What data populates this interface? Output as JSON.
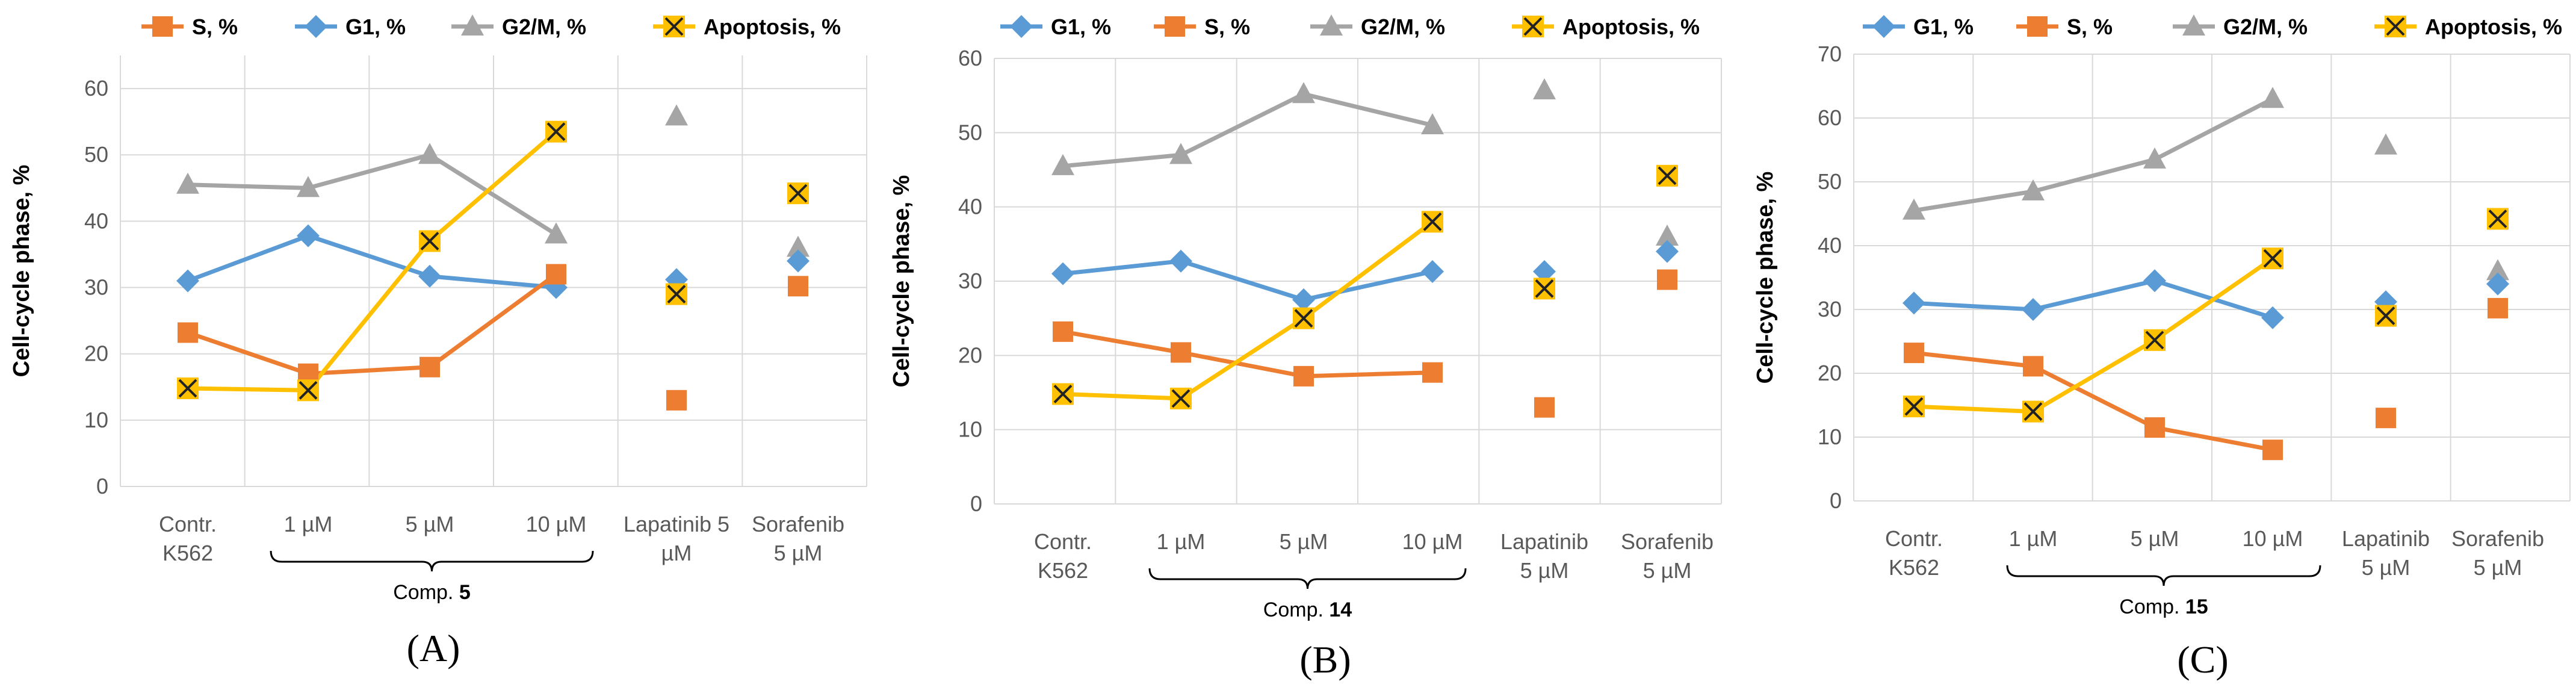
{
  "colors": {
    "G1": "#5B9BD5",
    "S": "#ED7D31",
    "G2M": "#A5A5A5",
    "Apoptosis": "#FFC000",
    "grid": "#D9D9D9"
  },
  "chart_data": [
    {
      "type": "line",
      "panel_label": "(A)",
      "ylabel": "Cell-cycle phase, %",
      "ylim": [
        0,
        65
      ],
      "yticks": [
        0,
        10,
        20,
        30,
        40,
        50,
        60
      ],
      "categories": [
        [
          "Contr.",
          "K562"
        ],
        [
          "1 µM"
        ],
        [
          "5 µM"
        ],
        [
          "10 µM"
        ],
        [
          "Lapatinib 5",
          "µM"
        ],
        [
          "Sorafenib",
          "5 µM"
        ]
      ],
      "group_label": {
        "prefix": "Comp. ",
        "number": "5"
      },
      "legend": [
        "S, %",
        "G1, %",
        "G2/M, %",
        "Apoptosis, %"
      ],
      "series": [
        {
          "key": "S",
          "name": "S, %",
          "values": [
            23.2,
            17.0,
            18.0,
            32.0,
            13.0,
            30.2
          ]
        },
        {
          "key": "G1",
          "name": "G1, %",
          "values": [
            31.0,
            37.8,
            31.7,
            30.0,
            31.2,
            34.0
          ]
        },
        {
          "key": "G2M",
          "name": "G2/M, %",
          "values": [
            45.5,
            45.0,
            50.0,
            38.0,
            55.8,
            36.0
          ]
        },
        {
          "key": "Apoptosis",
          "name": "Apoptosis, %",
          "values": [
            14.8,
            14.5,
            37.0,
            53.5,
            29.0,
            44.2
          ]
        }
      ]
    },
    {
      "type": "line",
      "panel_label": "(B)",
      "ylabel": "Cell-cycle phase, %",
      "ylim": [
        0,
        60
      ],
      "yticks": [
        0,
        10,
        20,
        30,
        40,
        50,
        60
      ],
      "categories": [
        [
          "Contr.",
          "K562"
        ],
        [
          "1 µM"
        ],
        [
          "5 µM"
        ],
        [
          "10 µM"
        ],
        [
          "Lapatinib",
          "5 µM"
        ],
        [
          "Sorafenib",
          "5 µM"
        ]
      ],
      "group_label": {
        "prefix": "Comp. ",
        "number": "14"
      },
      "legend": [
        "G1, %",
        "S, %",
        "G2/M, %",
        "Apoptosis, %"
      ],
      "series": [
        {
          "key": "G1",
          "name": "G1, %",
          "values": [
            31.0,
            32.7,
            27.5,
            31.3,
            31.3,
            34.0
          ]
        },
        {
          "key": "S",
          "name": "S, %",
          "values": [
            23.2,
            20.4,
            17.2,
            17.7,
            13.0,
            30.2
          ]
        },
        {
          "key": "G2M",
          "name": "G2/M, %",
          "values": [
            45.5,
            47.0,
            55.2,
            51.0,
            55.7,
            36.0
          ]
        },
        {
          "key": "Apoptosis",
          "name": "Apoptosis, %",
          "values": [
            14.8,
            14.2,
            25.0,
            38.0,
            29.0,
            44.2
          ]
        }
      ]
    },
    {
      "type": "line",
      "panel_label": "(C)",
      "ylabel": "Cell-cycle phase, %",
      "ylim": [
        0,
        70
      ],
      "yticks": [
        0,
        10,
        20,
        30,
        40,
        50,
        60,
        70
      ],
      "categories": [
        [
          "Contr.",
          "K562"
        ],
        [
          "1 µM"
        ],
        [
          "5 µM"
        ],
        [
          "10 µM"
        ],
        [
          "Lapatinib",
          "5 µM"
        ],
        [
          "Sorafenib",
          "5 µM"
        ]
      ],
      "group_label": {
        "prefix": "Comp. ",
        "number": "15"
      },
      "legend": [
        "G1, %",
        "S, %",
        "G2/M, %",
        "Apoptosis, %"
      ],
      "series": [
        {
          "key": "G1",
          "name": "G1, %",
          "values": [
            31.0,
            30.0,
            34.5,
            28.7,
            31.2,
            34.0
          ]
        },
        {
          "key": "S",
          "name": "S, %",
          "values": [
            23.2,
            21.1,
            11.5,
            8.0,
            13.0,
            30.2
          ]
        },
        {
          "key": "G2M",
          "name": "G2/M, %",
          "values": [
            45.5,
            48.5,
            53.5,
            63.0,
            55.7,
            36.0
          ]
        },
        {
          "key": "Apoptosis",
          "name": "Apoptosis, %",
          "values": [
            14.8,
            14.0,
            25.2,
            38.0,
            29.0,
            44.2
          ]
        }
      ]
    }
  ]
}
